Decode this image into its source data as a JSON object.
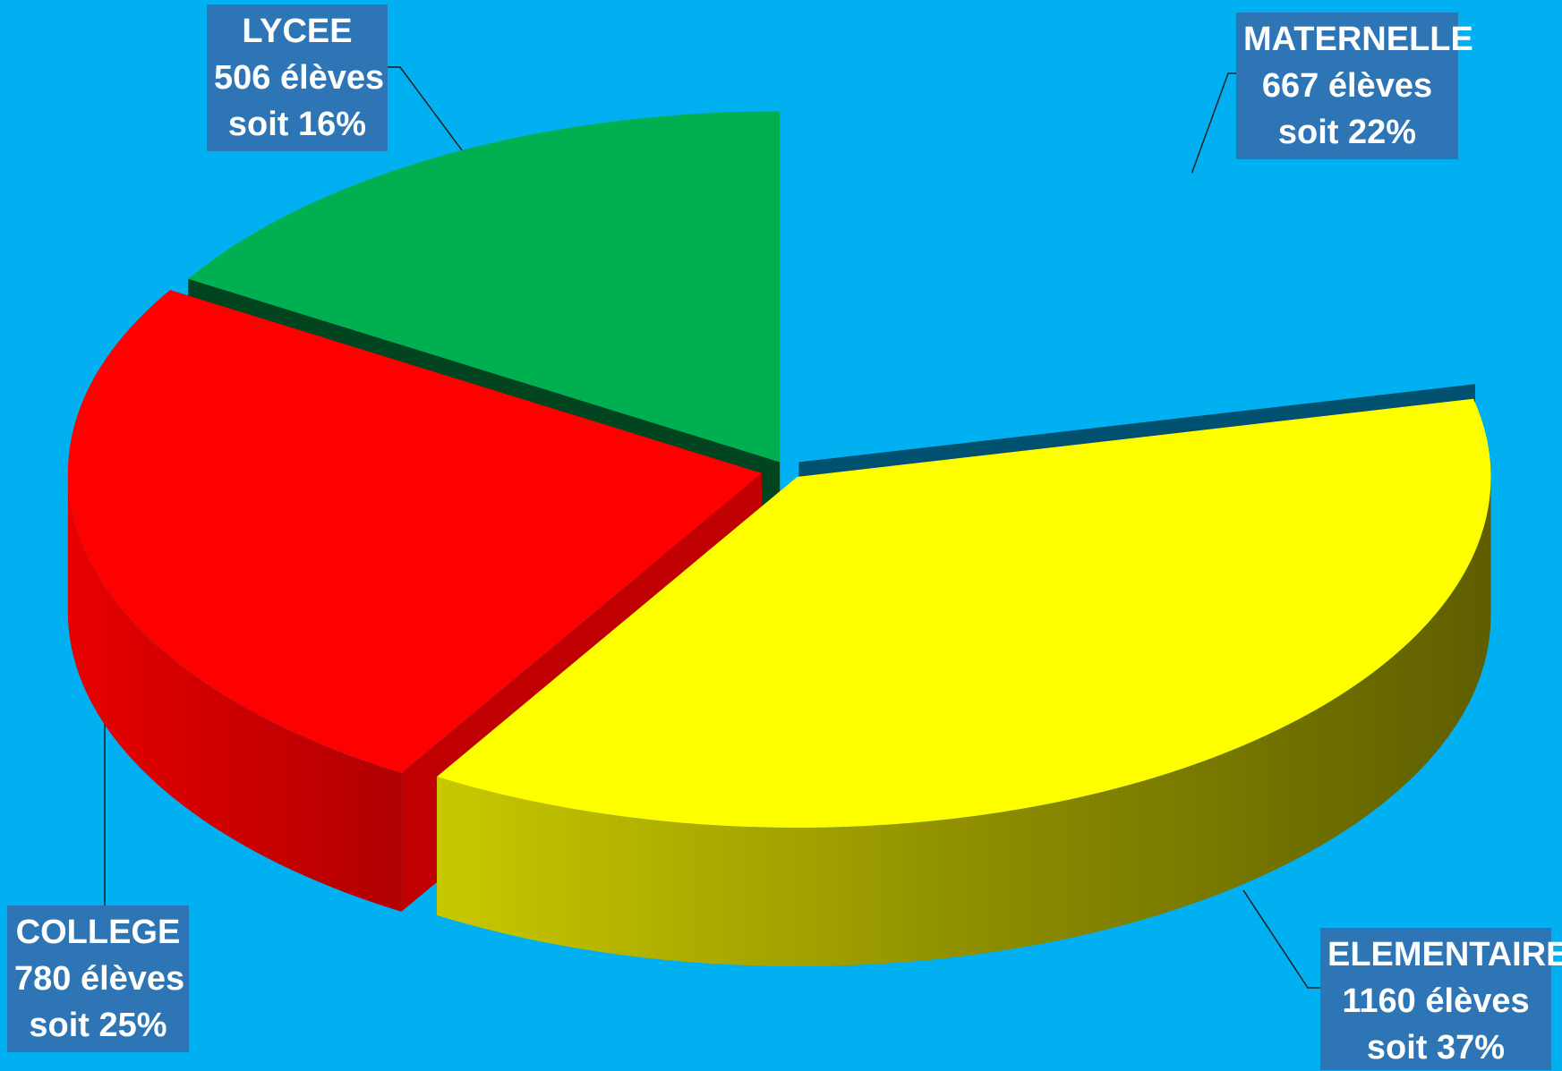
{
  "chart_data": {
    "type": "pie",
    "style": "3d-exploded",
    "background": "#00B0F0",
    "slices": [
      {
        "label": "MATERNELLE",
        "value": 667,
        "count_text": "667 élèves",
        "percent_text": "soit 22%",
        "color": "#00B0F0",
        "side_color": "#005070"
      },
      {
        "label": "ELEMENTAIRE",
        "value": 1160,
        "count_text": "1160 élèves",
        "percent_text": "soit 37%",
        "color": "#FFFF00",
        "side_color": "#A8A800"
      },
      {
        "label": "COLLEGE",
        "value": 780,
        "count_text": "780 élèves",
        "percent_text": "soit 25%",
        "color": "#FF0000",
        "side_color": "#C00000"
      },
      {
        "label": "LYCEE",
        "value": 506,
        "count_text": "506 élèves",
        "percent_text": "soit 16%",
        "color": "#00B050",
        "side_color": "#004520"
      }
    ],
    "label_box_color": "#2E75B6"
  }
}
